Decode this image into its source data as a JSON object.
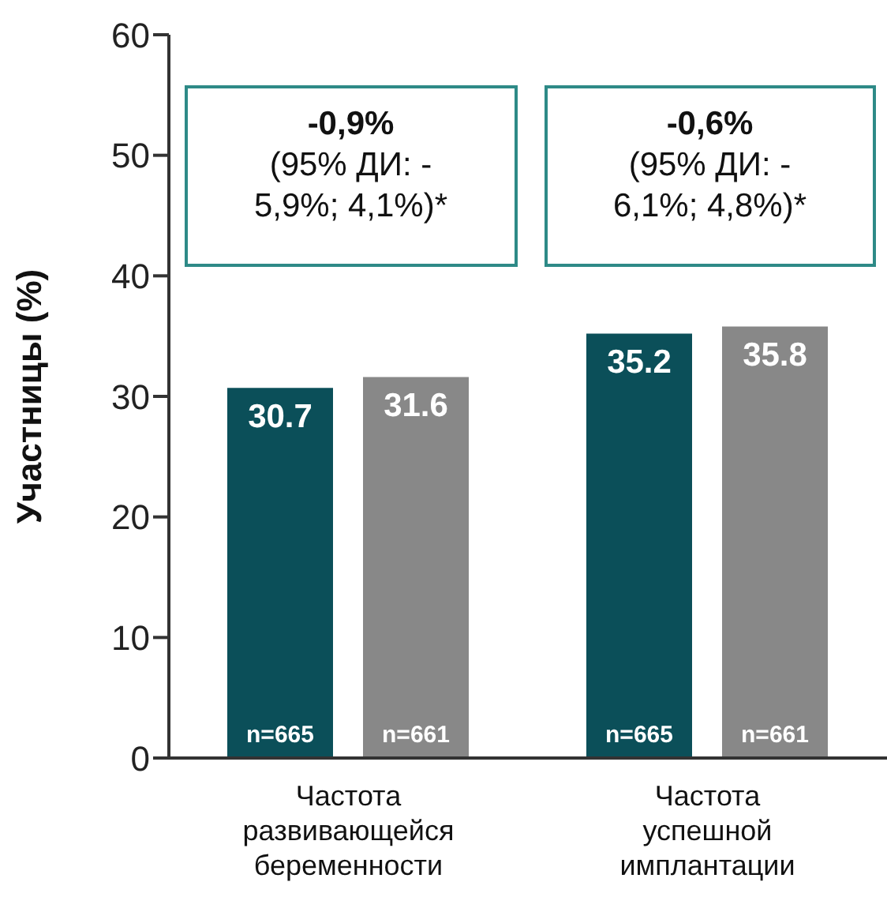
{
  "chart_data": {
    "type": "bar",
    "ylabel": "Участницы (%)",
    "categories": [
      "Частота развивающейся беременности",
      "Частота успешной имплантации"
    ],
    "series": [
      {
        "color": "#0b4f59",
        "values": [
          30.7,
          35.2
        ]
      },
      {
        "color": "#888888",
        "values": [
          31.6,
          35.8
        ]
      }
    ],
    "ylim": [
      0,
      60
    ],
    "yticks": [
      0,
      10,
      20,
      30,
      40,
      50,
      60
    ],
    "data_labels": true,
    "annotations": [
      "-0,9%\n(95% ДИ: -\n5,9%; 4,1%)*",
      "-0,6%\n(95% ДИ: -\n6,1%; 4,8%)*",
      "n=665",
      "n=661",
      "n=665",
      "n=661"
    ]
  }
}
